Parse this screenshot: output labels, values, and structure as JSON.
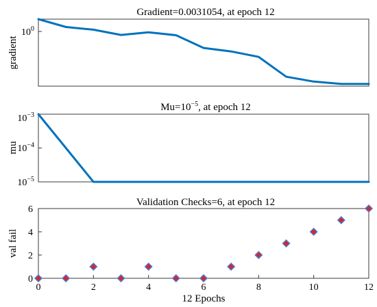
{
  "chart_data": [
    {
      "type": "line",
      "title": "Gradient=0.0031054, at epoch 12",
      "ylabel": "gradient",
      "yscale": "log",
      "ytick_labels": [
        {
          "base": "10",
          "exp": "0"
        }
      ],
      "xlim": [
        0,
        12
      ],
      "ylim": [
        0.0025,
        1.6
      ],
      "color": "#0072BD",
      "x": [
        0,
        1,
        2,
        3,
        4,
        5,
        6,
        7,
        8,
        9,
        10,
        11,
        12
      ],
      "values": [
        1.6,
        0.75,
        0.58,
        0.35,
        0.45,
        0.34,
        0.1,
        0.071,
        0.042,
        0.0062,
        0.0039,
        0.0031,
        0.0031054
      ]
    },
    {
      "type": "line",
      "title_prefix": "Mu=10",
      "title_exp": "−5",
      "title_suffix": ", at epoch 12",
      "ylabel": "mu",
      "yscale": "log",
      "ytick_labels": [
        {
          "base": "10",
          "exp": "−3"
        },
        {
          "base": "10",
          "exp": "−4"
        },
        {
          "base": "10",
          "exp": "−5"
        }
      ],
      "xlim": [
        0,
        12
      ],
      "ylim": [
        1e-05,
        0.001
      ],
      "color": "#0072BD",
      "x": [
        0,
        1,
        2,
        3,
        4,
        5,
        6,
        7,
        8,
        9,
        10,
        11,
        12
      ],
      "values": [
        0.001,
        0.0001,
        1e-05,
        1e-05,
        1e-05,
        1e-05,
        1e-05,
        1e-05,
        1e-05,
        1e-05,
        1e-05,
        1e-05,
        1e-05
      ]
    },
    {
      "type": "scatter",
      "title": "Validation Checks=6, at epoch 12",
      "ylabel": "val fail",
      "xlabel": "12 Epochs",
      "xlim": [
        0,
        12
      ],
      "ylim": [
        0,
        6
      ],
      "yticks": [
        "0",
        "2",
        "4",
        "6"
      ],
      "xticks": [
        "0",
        "2",
        "4",
        "6",
        "8",
        "10",
        "12"
      ],
      "marker_fill": "#D62728",
      "marker_edge": "#4A7BD0",
      "x": [
        0,
        1,
        2,
        3,
        4,
        5,
        6,
        7,
        8,
        9,
        10,
        11,
        12
      ],
      "values": [
        0,
        0,
        1,
        0,
        1,
        0,
        0,
        1,
        2,
        3,
        4,
        5,
        6
      ]
    }
  ]
}
